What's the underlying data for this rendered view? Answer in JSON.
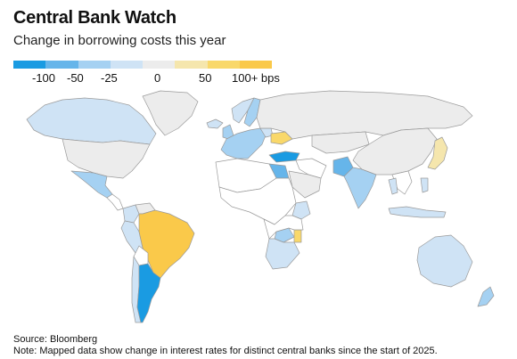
{
  "header": {
    "title": "Central Bank Watch",
    "subtitle": "Change in borrowing costs this year"
  },
  "legend": {
    "bins": [
      {
        "color": "#1a9be2",
        "range": "<= -100"
      },
      {
        "color": "#66b5ea",
        "range": "-100 to -50"
      },
      {
        "color": "#a5d1f2",
        "range": "-50 to -25"
      },
      {
        "color": "#cfe3f5",
        "range": "-25 to 0"
      },
      {
        "color": "#ececec",
        "range": "0"
      },
      {
        "color": "#f5e6ad",
        "range": "0 to 50"
      },
      {
        "color": "#f9d86a",
        "range": "50 to 100"
      },
      {
        "color": "#fac94a",
        "range": ">= 100"
      }
    ],
    "labels": [
      "-100",
      "-50",
      "-25",
      "0",
      "50",
      "100+ bps"
    ]
  },
  "map": {
    "no_data_color": "#ffffff",
    "border_color": "#9a9a9a",
    "regions": [
      {
        "name": "Canada",
        "bin": 3
      },
      {
        "name": "United States",
        "bin": 4
      },
      {
        "name": "Mexico",
        "bin": 2
      },
      {
        "name": "Greenland",
        "bin": 4
      },
      {
        "name": "Brazil",
        "bin": 7
      },
      {
        "name": "Argentina",
        "bin": 0
      },
      {
        "name": "Chile",
        "bin": 3
      },
      {
        "name": "Peru",
        "bin": 3
      },
      {
        "name": "Colombia",
        "bin": 3
      },
      {
        "name": "Iceland",
        "bin": 3
      },
      {
        "name": "United Kingdom",
        "bin": 2
      },
      {
        "name": "Euro area",
        "bin": 2
      },
      {
        "name": "Norway",
        "bin": 3
      },
      {
        "name": "Sweden",
        "bin": 2
      },
      {
        "name": "Poland",
        "bin": 3
      },
      {
        "name": "Ukraine",
        "bin": 6
      },
      {
        "name": "Russia",
        "bin": 4
      },
      {
        "name": "Turkey",
        "bin": 0
      },
      {
        "name": "Egypt",
        "bin": 1
      },
      {
        "name": "Saudi Arabia",
        "bin": 4
      },
      {
        "name": "Pakistan",
        "bin": 1
      },
      {
        "name": "India",
        "bin": 2
      },
      {
        "name": "China",
        "bin": 4
      },
      {
        "name": "Japan",
        "bin": 5
      },
      {
        "name": "Indonesia",
        "bin": 3
      },
      {
        "name": "Philippines",
        "bin": 3
      },
      {
        "name": "Thailand",
        "bin": 3
      },
      {
        "name": "Kenya",
        "bin": 3
      },
      {
        "name": "Zambia",
        "bin": 2
      },
      {
        "name": "Malawi",
        "bin": 6
      },
      {
        "name": "South Africa",
        "bin": 3
      },
      {
        "name": "Australia",
        "bin": 3
      },
      {
        "name": "New Zealand",
        "bin": 2
      }
    ]
  },
  "footer": {
    "source": "Source: Bloomberg",
    "note": "Note: Mapped data show change in interest rates for distinct central banks since the start of 2025."
  }
}
